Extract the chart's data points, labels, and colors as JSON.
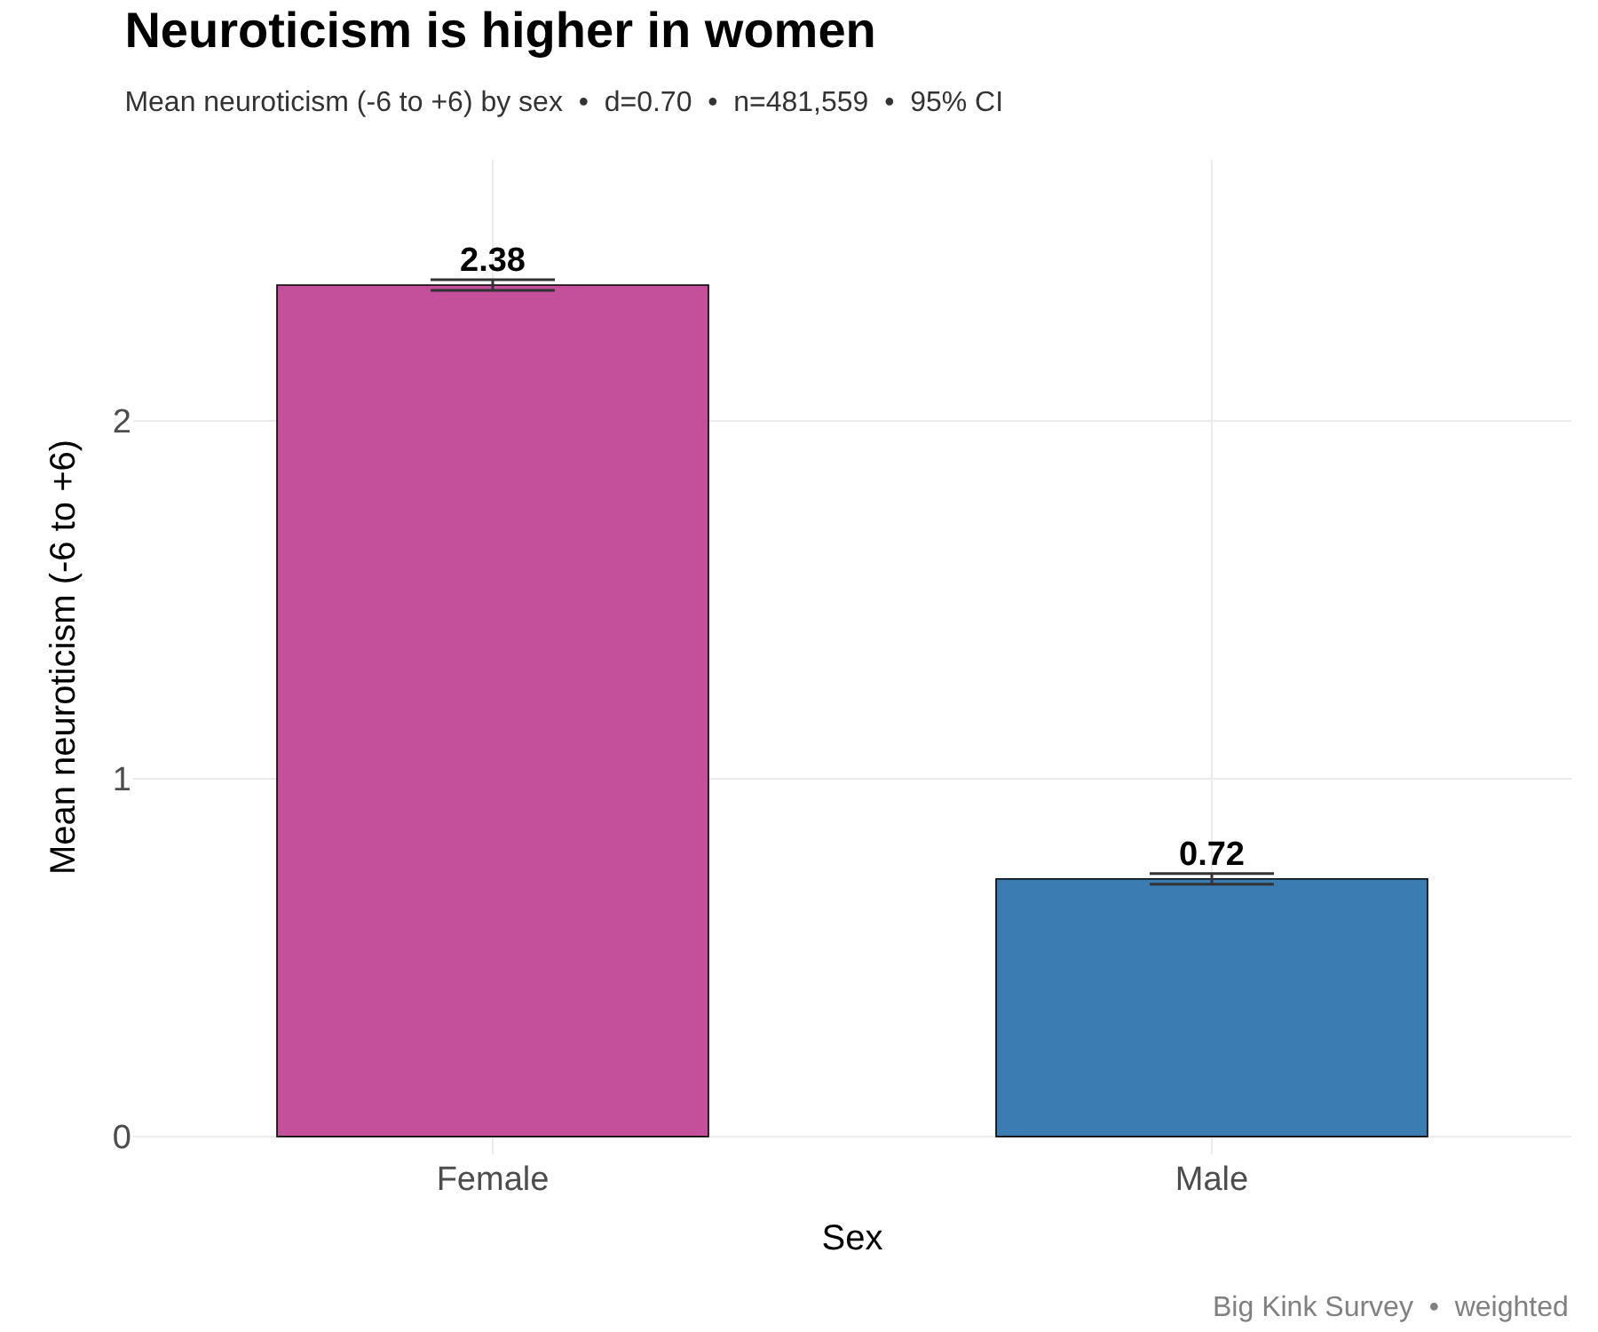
{
  "chart_data": {
    "type": "bar",
    "title": "Neuroticism is higher in women",
    "subtitle": "Mean neuroticism (-6 to +6) by sex  •  d=0.70  •  n=481,559  •  95% CI",
    "xlabel": "Sex",
    "ylabel": "Mean neuroticism (-6 to +6)",
    "categories": [
      "Female",
      "Male"
    ],
    "values": [
      2.38,
      0.72
    ],
    "colors": [
      "#c44f9a",
      "#3b7cb3"
    ],
    "errors": [
      0.015,
      0.015
    ],
    "data_labels": true,
    "ylim": [
      -0.05,
      2.73
    ],
    "yticks": [
      0,
      1,
      2
    ],
    "grid": true,
    "annotations": [
      "Big Kink Survey  •  weighted"
    ]
  }
}
